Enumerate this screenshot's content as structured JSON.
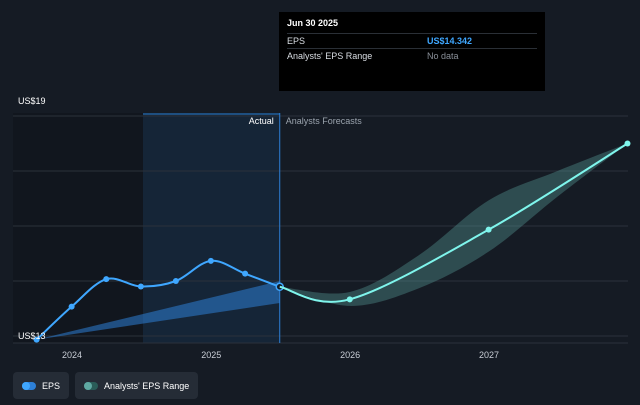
{
  "chart_data": {
    "type": "line",
    "y_tick_labels": [
      "US$19",
      "US$13"
    ],
    "x_tick_labels": [
      "2024",
      "2025",
      "2026",
      "2027"
    ],
    "region_labels": {
      "actual": "Actual",
      "forecast": "Analysts Forecasts"
    },
    "series": [
      {
        "name": "EPS",
        "kind": "actual",
        "color": "#3fa7ff",
        "x": [
          "2023-09-30",
          "2023-12-31",
          "2024-03-31",
          "2024-06-30",
          "2024-09-30",
          "2024-12-31",
          "2025-03-31",
          "2025-06-30"
        ],
        "y": [
          12.9,
          13.8,
          14.55,
          14.35,
          14.5,
          15.05,
          14.7,
          14.342
        ]
      },
      {
        "name": "EPS",
        "kind": "forecast",
        "color": "#7ff5ec",
        "x": [
          "2025-06-30",
          "2025-12-31",
          "2026-12-31",
          "2027-12-31"
        ],
        "y": [
          14.342,
          14.0,
          15.9,
          18.25
        ]
      }
    ],
    "bands": [
      {
        "name": "Analysts' EPS Range",
        "kind": "actual",
        "color": "#2d7fd6",
        "x": [
          "2023-09-30",
          "2025-06-30"
        ],
        "low": [
          12.9,
          13.9
        ],
        "high": [
          12.9,
          14.5
        ]
      },
      {
        "name": "Analysts' EPS Range",
        "kind": "forecast",
        "color": "#5fa8a2",
        "x": [
          "2025-06-30",
          "2025-12-31",
          "2026-06-30",
          "2026-12-31",
          "2027-06-30",
          "2027-12-31"
        ],
        "low": [
          14.342,
          13.82,
          14.3,
          15.3,
          16.8,
          18.25
        ],
        "high": [
          14.342,
          14.2,
          15.2,
          16.7,
          17.5,
          18.25
        ]
      }
    ],
    "highlight_date": "2025-06-30",
    "grid": true,
    "legend_position": "bottom-left"
  },
  "tooltip": {
    "date": "Jun 30 2025",
    "rows": [
      {
        "label": "EPS",
        "value": "US$14.342"
      },
      {
        "label": "Analysts' EPS Range",
        "value": "No data"
      }
    ]
  },
  "legend": {
    "items": [
      {
        "label": "EPS",
        "color": "#3fa7ff"
      },
      {
        "label": "Analysts' EPS Range",
        "color": "#5fa8a2"
      }
    ]
  }
}
